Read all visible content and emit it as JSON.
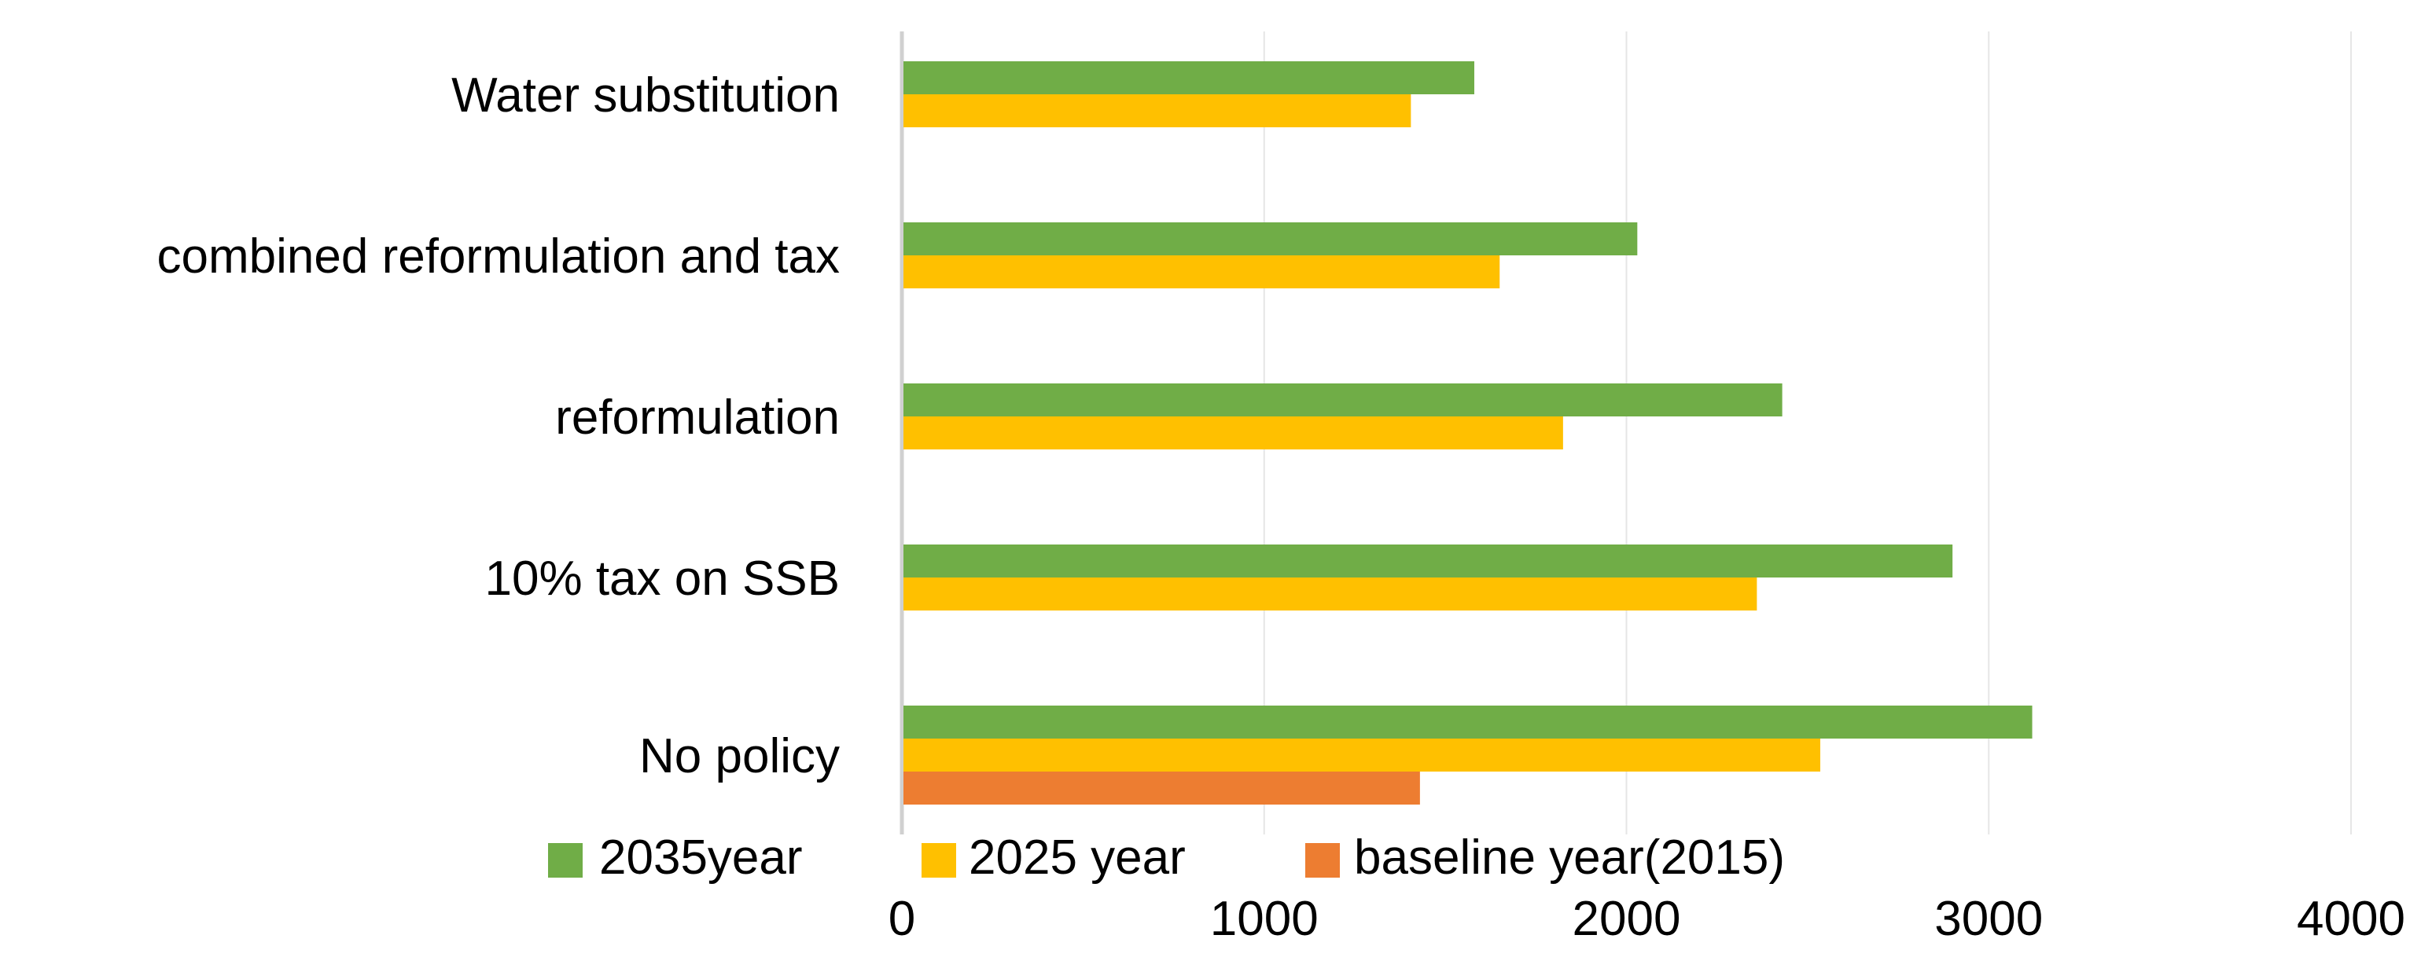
{
  "chart_data": {
    "type": "bar",
    "orientation": "horizontal",
    "title": "",
    "xlabel": "",
    "ylabel": "",
    "xlim": [
      0,
      4000
    ],
    "xticks": [
      0,
      1000,
      2000,
      3000,
      4000
    ],
    "grid": true,
    "legend_position": "bottom",
    "categories": [
      "Water substitution",
      "combined reformulation and tax",
      "reformulation",
      "10% tax on SSB",
      "No policy"
    ],
    "series": [
      {
        "name": "2035year",
        "color": "#70AD47",
        "values": [
          1580,
          2030,
          2430,
          2900,
          3120
        ]
      },
      {
        "name": "2025 year",
        "color": "#FFC000",
        "values": [
          1405,
          1650,
          1825,
          2360,
          2535
        ]
      },
      {
        "name": "baseline year(2015)",
        "color": "#ED7D31",
        "values": [
          null,
          null,
          null,
          null,
          1430
        ]
      }
    ]
  }
}
